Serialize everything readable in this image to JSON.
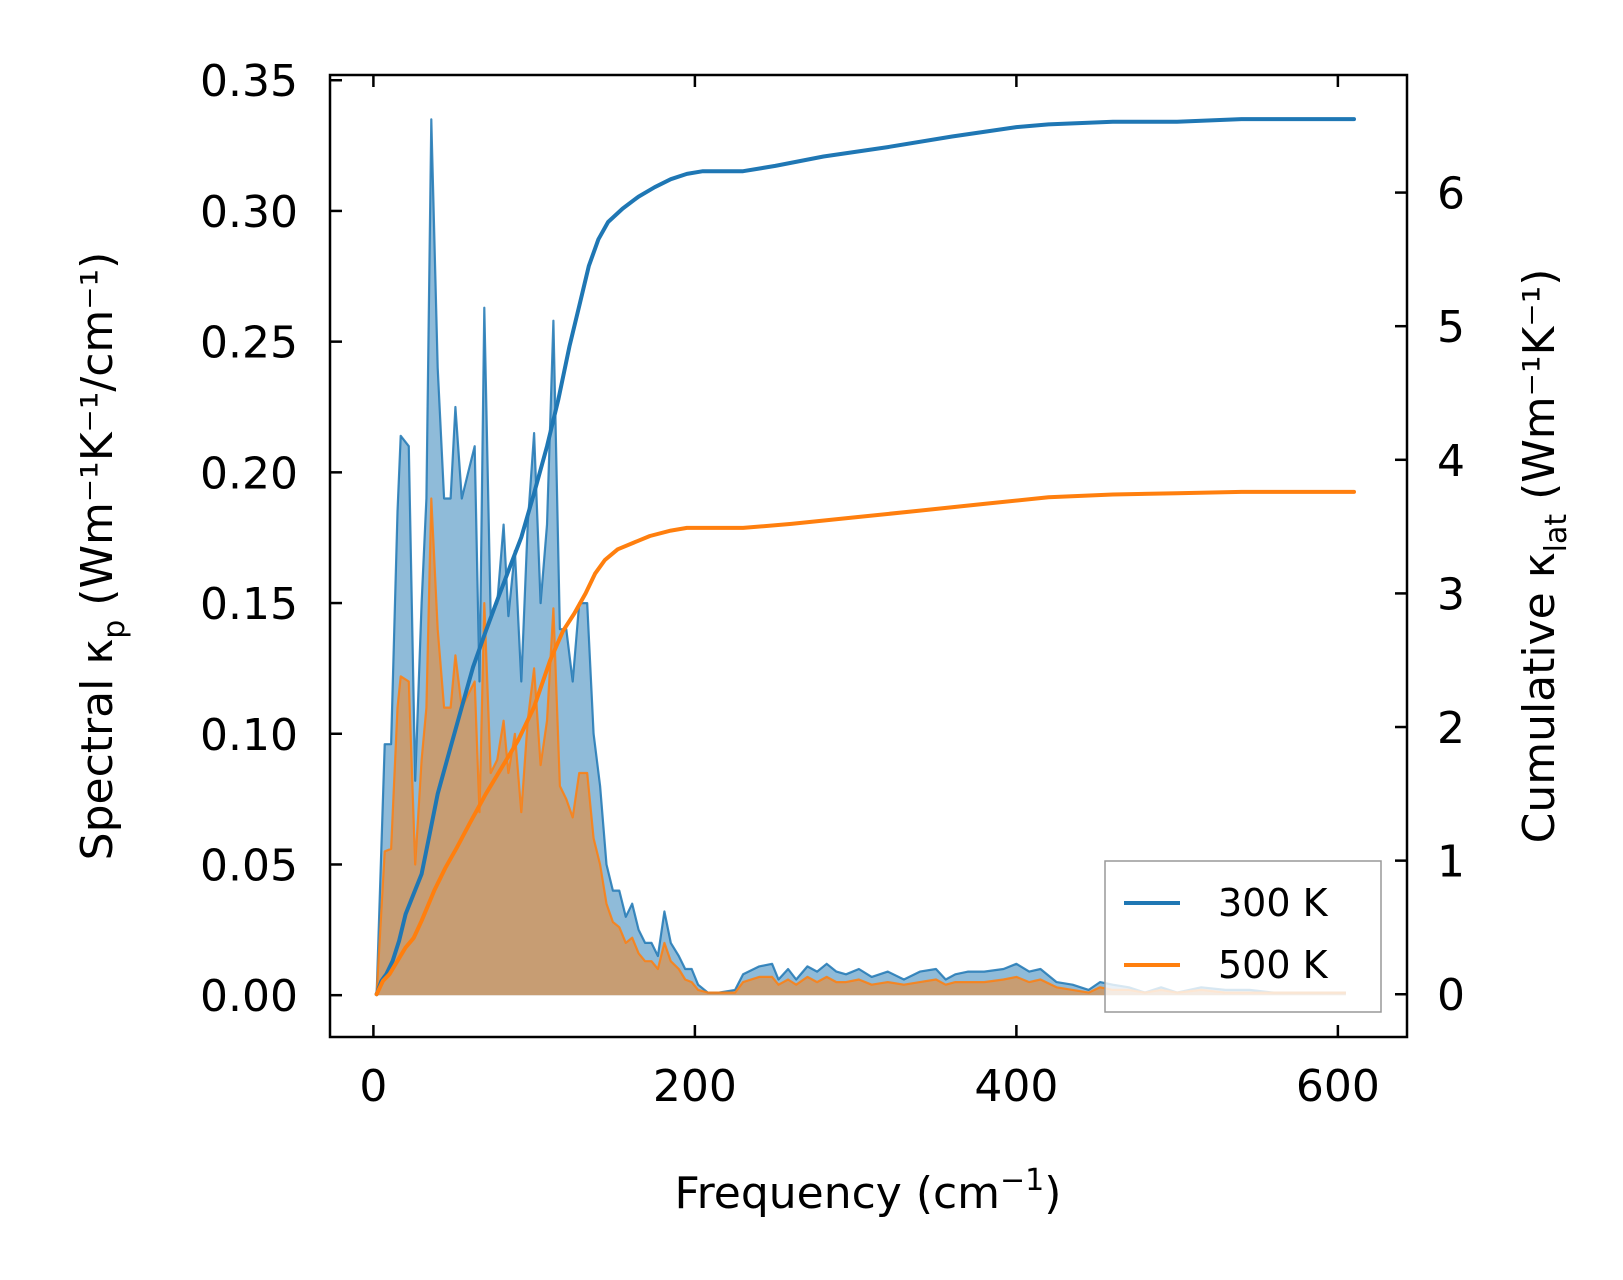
{
  "chart_data": {
    "type": "line",
    "xlabel": "Frequency (cm",
    "xlabel_sup": "−1",
    "xlabel_end": ")",
    "ylabel_left": "Spectral κ",
    "ylabel_left_sub": "p",
    "ylabel_left_unit": " (Wm⁻¹K⁻¹/cm⁻¹)",
    "ylabel_right": "Cumulative κ",
    "ylabel_right_sub": "lat",
    "ylabel_right_unit": " (Wm⁻¹K⁻¹)",
    "xlim": [
      -27,
      643
    ],
    "ylim_left": [
      -0.016,
      0.352
    ],
    "ylim_right": [
      -0.32,
      6.88
    ],
    "x_ticks": [
      0,
      200,
      400,
      600
    ],
    "x_tick_labels": [
      "0",
      "200",
      "400",
      "600"
    ],
    "y_left_ticks": [
      0,
      0.05,
      0.1,
      0.15,
      0.2,
      0.25,
      0.3,
      0.35
    ],
    "y_left_tick_labels": [
      "0.00",
      "0.05",
      "0.10",
      "0.15",
      "0.20",
      "0.25",
      "0.30",
      "0.35"
    ],
    "y_right_ticks": [
      0,
      1,
      2,
      3,
      4,
      5,
      6
    ],
    "y_right_tick_labels": [
      "0",
      "1",
      "2",
      "3",
      "4",
      "5",
      "6"
    ],
    "legend_position": "lower-right",
    "series": [
      {
        "name": "300 K",
        "color": "#1f77b4",
        "spectral": [
          [
            2,
            0
          ],
          [
            7,
            0.096
          ],
          [
            11,
            0.096
          ],
          [
            15,
            0.185
          ],
          [
            17,
            0.214
          ],
          [
            22,
            0.21
          ],
          [
            26,
            0.082
          ],
          [
            30,
            0.15
          ],
          [
            33,
            0.19
          ],
          [
            36,
            0.335
          ],
          [
            40,
            0.24
          ],
          [
            44,
            0.19
          ],
          [
            48,
            0.19
          ],
          [
            51,
            0.225
          ],
          [
            55,
            0.19
          ],
          [
            59,
            0.2
          ],
          [
            63,
            0.21
          ],
          [
            66,
            0.12
          ],
          [
            69,
            0.263
          ],
          [
            73,
            0.145
          ],
          [
            77,
            0.15
          ],
          [
            81,
            0.18
          ],
          [
            84,
            0.145
          ],
          [
            88,
            0.17
          ],
          [
            92,
            0.12
          ],
          [
            96,
            0.18
          ],
          [
            100,
            0.215
          ],
          [
            104,
            0.15
          ],
          [
            108,
            0.18
          ],
          [
            112,
            0.258
          ],
          [
            116,
            0.14
          ],
          [
            120,
            0.14
          ],
          [
            124,
            0.12
          ],
          [
            128,
            0.15
          ],
          [
            133,
            0.15
          ],
          [
            137,
            0.1
          ],
          [
            141,
            0.08
          ],
          [
            145,
            0.05
          ],
          [
            149,
            0.04
          ],
          [
            153,
            0.04
          ],
          [
            157,
            0.03
          ],
          [
            161,
            0.035
          ],
          [
            165,
            0.025
          ],
          [
            169,
            0.02
          ],
          [
            173,
            0.02
          ],
          [
            177,
            0.015
          ],
          [
            181,
            0.032
          ],
          [
            185,
            0.02
          ],
          [
            190,
            0.015
          ],
          [
            194,
            0.01
          ],
          [
            198,
            0.01
          ],
          [
            202,
            0.004
          ],
          [
            208,
            0.001
          ],
          [
            215,
            0.001
          ],
          [
            225,
            0.002
          ],
          [
            230,
            0.008
          ],
          [
            240,
            0.011
          ],
          [
            248,
            0.012
          ],
          [
            252,
            0.006
          ],
          [
            258,
            0.01
          ],
          [
            263,
            0.006
          ],
          [
            270,
            0.011
          ],
          [
            276,
            0.009
          ],
          [
            282,
            0.012
          ],
          [
            288,
            0.009
          ],
          [
            294,
            0.008
          ],
          [
            302,
            0.01
          ],
          [
            310,
            0.007
          ],
          [
            320,
            0.009
          ],
          [
            330,
            0.006
          ],
          [
            340,
            0.009
          ],
          [
            350,
            0.01
          ],
          [
            356,
            0.006
          ],
          [
            362,
            0.008
          ],
          [
            370,
            0.009
          ],
          [
            380,
            0.009
          ],
          [
            392,
            0.01
          ],
          [
            400,
            0.012
          ],
          [
            408,
            0.009
          ],
          [
            415,
            0.01
          ],
          [
            425,
            0.005
          ],
          [
            435,
            0.004
          ],
          [
            445,
            0.002
          ],
          [
            452,
            0.005
          ],
          [
            460,
            0.004
          ],
          [
            470,
            0.003
          ],
          [
            480,
            0.001
          ],
          [
            490,
            0.003
          ],
          [
            500,
            0.001
          ],
          [
            515,
            0.003
          ],
          [
            530,
            0.002
          ],
          [
            545,
            0.002
          ],
          [
            560,
            0.001
          ],
          [
            575,
            0.001
          ],
          [
            590,
            0.001
          ],
          [
            605,
            0.001
          ]
        ],
        "cumulative": [
          [
            2,
            0
          ],
          [
            5,
            0.1
          ],
          [
            8,
            0.15
          ],
          [
            12,
            0.25
          ],
          [
            16,
            0.4
          ],
          [
            20,
            0.6
          ],
          [
            25,
            0.75
          ],
          [
            30,
            0.9
          ],
          [
            35,
            1.2
          ],
          [
            40,
            1.5
          ],
          [
            48,
            1.85
          ],
          [
            55,
            2.15
          ],
          [
            62,
            2.45
          ],
          [
            70,
            2.72
          ],
          [
            78,
            2.98
          ],
          [
            85,
            3.2
          ],
          [
            92,
            3.42
          ],
          [
            100,
            3.75
          ],
          [
            108,
            4.1
          ],
          [
            115,
            4.45
          ],
          [
            122,
            4.85
          ],
          [
            128,
            5.15
          ],
          [
            134,
            5.45
          ],
          [
            140,
            5.65
          ],
          [
            146,
            5.78
          ],
          [
            155,
            5.88
          ],
          [
            165,
            5.97
          ],
          [
            175,
            6.04
          ],
          [
            185,
            6.1
          ],
          [
            195,
            6.14
          ],
          [
            205,
            6.16
          ],
          [
            230,
            6.16
          ],
          [
            250,
            6.2
          ],
          [
            280,
            6.27
          ],
          [
            320,
            6.34
          ],
          [
            360,
            6.42
          ],
          [
            400,
            6.49
          ],
          [
            420,
            6.51
          ],
          [
            460,
            6.53
          ],
          [
            500,
            6.53
          ],
          [
            540,
            6.55
          ],
          [
            580,
            6.55
          ],
          [
            610,
            6.55
          ]
        ]
      },
      {
        "name": "500 K",
        "color": "#ff7f0e",
        "spectral": [
          [
            2,
            0
          ],
          [
            7,
            0.055
          ],
          [
            11,
            0.056
          ],
          [
            15,
            0.11
          ],
          [
            17,
            0.122
          ],
          [
            22,
            0.12
          ],
          [
            26,
            0.05
          ],
          [
            30,
            0.09
          ],
          [
            33,
            0.11
          ],
          [
            36,
            0.19
          ],
          [
            40,
            0.14
          ],
          [
            44,
            0.11
          ],
          [
            48,
            0.11
          ],
          [
            51,
            0.13
          ],
          [
            55,
            0.11
          ],
          [
            59,
            0.115
          ],
          [
            63,
            0.12
          ],
          [
            66,
            0.07
          ],
          [
            69,
            0.15
          ],
          [
            73,
            0.085
          ],
          [
            77,
            0.09
          ],
          [
            81,
            0.105
          ],
          [
            84,
            0.085
          ],
          [
            88,
            0.1
          ],
          [
            92,
            0.07
          ],
          [
            96,
            0.105
          ],
          [
            100,
            0.125
          ],
          [
            104,
            0.088
          ],
          [
            108,
            0.105
          ],
          [
            112,
            0.148
          ],
          [
            116,
            0.08
          ],
          [
            120,
            0.075
          ],
          [
            124,
            0.068
          ],
          [
            128,
            0.085
          ],
          [
            133,
            0.085
          ],
          [
            137,
            0.06
          ],
          [
            141,
            0.05
          ],
          [
            145,
            0.035
          ],
          [
            149,
            0.028
          ],
          [
            153,
            0.026
          ],
          [
            157,
            0.02
          ],
          [
            161,
            0.022
          ],
          [
            165,
            0.016
          ],
          [
            169,
            0.013
          ],
          [
            173,
            0.013
          ],
          [
            177,
            0.01
          ],
          [
            181,
            0.02
          ],
          [
            185,
            0.013
          ],
          [
            190,
            0.01
          ],
          [
            194,
            0.006
          ],
          [
            198,
            0.005
          ],
          [
            202,
            0.002
          ],
          [
            208,
            0.001
          ],
          [
            215,
            0.001
          ],
          [
            225,
            0.001
          ],
          [
            230,
            0.005
          ],
          [
            240,
            0.007
          ],
          [
            248,
            0.007
          ],
          [
            252,
            0.004
          ],
          [
            258,
            0.006
          ],
          [
            263,
            0.004
          ],
          [
            270,
            0.007
          ],
          [
            276,
            0.005
          ],
          [
            282,
            0.007
          ],
          [
            288,
            0.005
          ],
          [
            294,
            0.005
          ],
          [
            302,
            0.006
          ],
          [
            310,
            0.004
          ],
          [
            320,
            0.005
          ],
          [
            330,
            0.004
          ],
          [
            340,
            0.005
          ],
          [
            350,
            0.006
          ],
          [
            356,
            0.004
          ],
          [
            362,
            0.005
          ],
          [
            370,
            0.005
          ],
          [
            380,
            0.005
          ],
          [
            392,
            0.006
          ],
          [
            400,
            0.007
          ],
          [
            408,
            0.005
          ],
          [
            415,
            0.006
          ],
          [
            425,
            0.003
          ],
          [
            435,
            0.002
          ],
          [
            445,
            0.001
          ],
          [
            452,
            0.003
          ],
          [
            460,
            0.002
          ],
          [
            470,
            0.002
          ],
          [
            480,
            0.001
          ],
          [
            490,
            0.002
          ],
          [
            500,
            0.001
          ],
          [
            515,
            0.002
          ],
          [
            530,
            0.001
          ],
          [
            545,
            0.001
          ],
          [
            560,
            0.001
          ],
          [
            575,
            0.001
          ],
          [
            590,
            0.001
          ],
          [
            605,
            0.001
          ]
        ],
        "cumulative": [
          [
            2,
            0
          ],
          [
            6,
            0.1
          ],
          [
            10,
            0.15
          ],
          [
            15,
            0.25
          ],
          [
            20,
            0.35
          ],
          [
            25,
            0.42
          ],
          [
            30,
            0.55
          ],
          [
            38,
            0.78
          ],
          [
            45,
            0.95
          ],
          [
            52,
            1.1
          ],
          [
            60,
            1.28
          ],
          [
            70,
            1.5
          ],
          [
            80,
            1.7
          ],
          [
            90,
            1.9
          ],
          [
            100,
            2.15
          ],
          [
            110,
            2.5
          ],
          [
            118,
            2.72
          ],
          [
            125,
            2.85
          ],
          [
            132,
            3.0
          ],
          [
            138,
            3.15
          ],
          [
            144,
            3.25
          ],
          [
            152,
            3.33
          ],
          [
            162,
            3.38
          ],
          [
            172,
            3.43
          ],
          [
            185,
            3.47
          ],
          [
            195,
            3.49
          ],
          [
            230,
            3.49
          ],
          [
            260,
            3.52
          ],
          [
            300,
            3.57
          ],
          [
            340,
            3.62
          ],
          [
            380,
            3.67
          ],
          [
            420,
            3.72
          ],
          [
            460,
            3.74
          ],
          [
            500,
            3.75
          ],
          [
            540,
            3.76
          ],
          [
            610,
            3.76
          ]
        ]
      }
    ]
  }
}
